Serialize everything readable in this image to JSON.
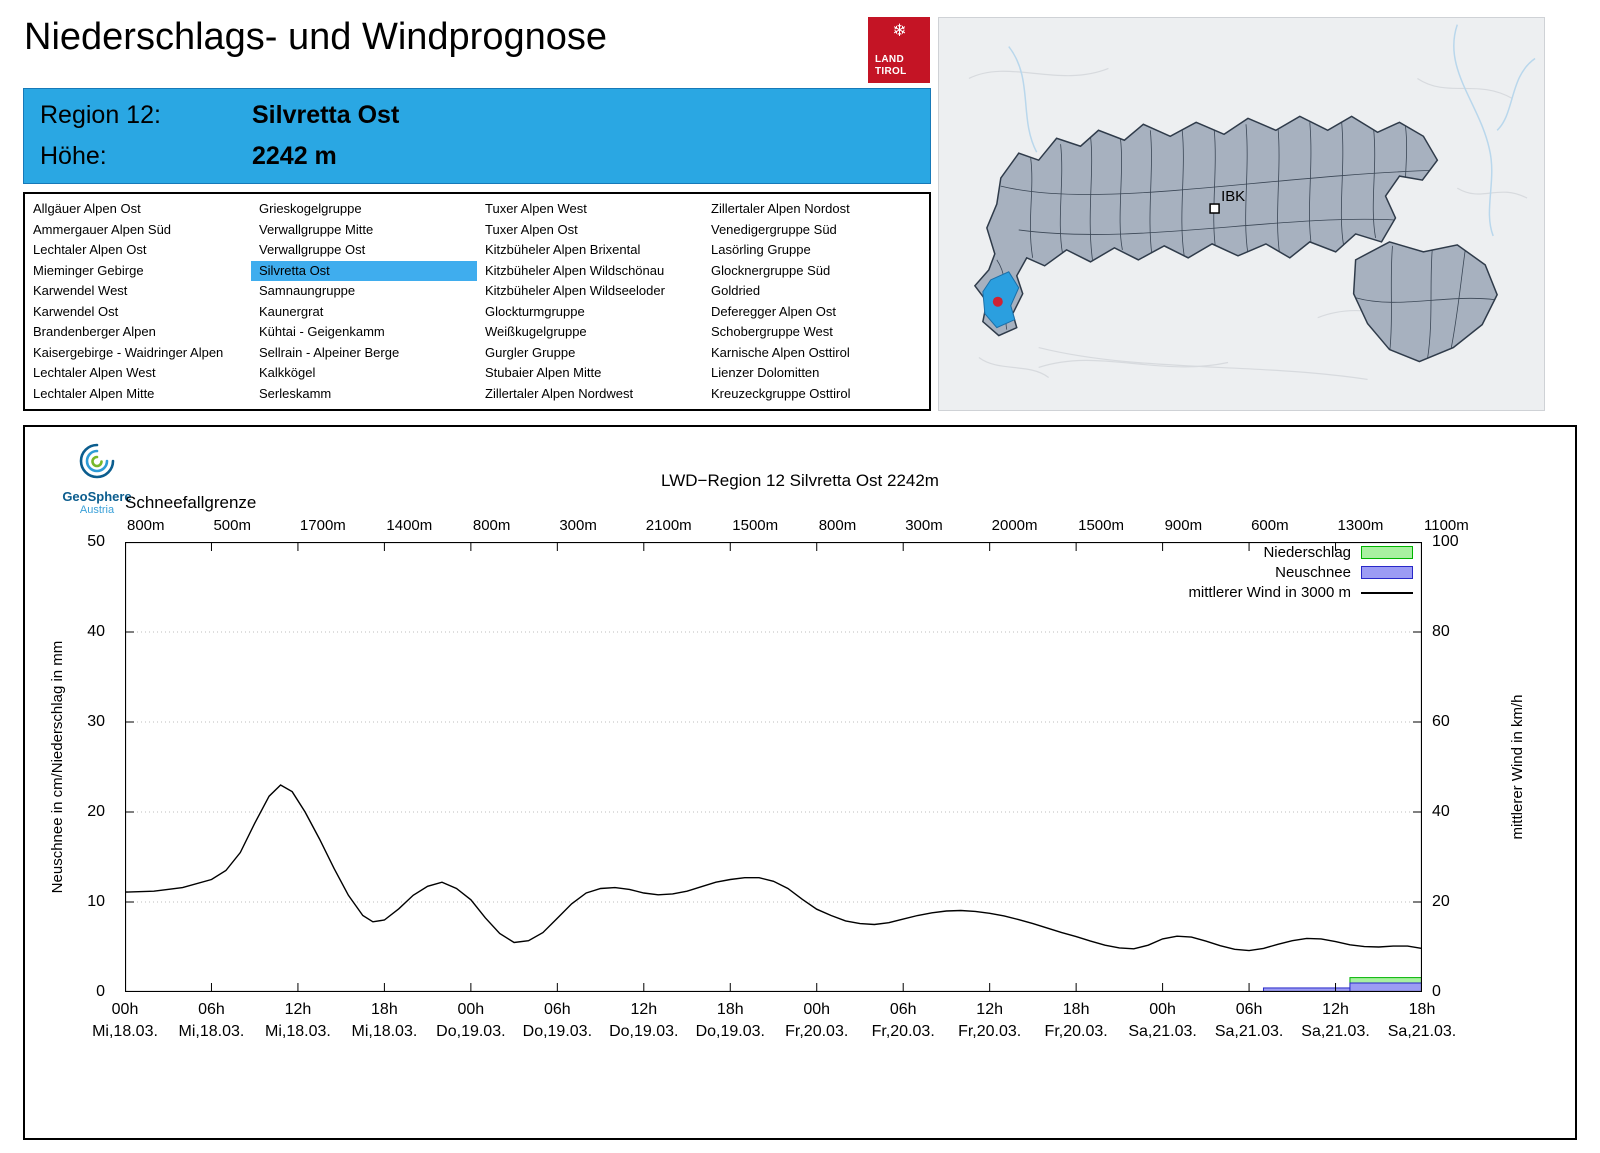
{
  "page": {
    "title": "Niederschlags- und Windprognose"
  },
  "logo": {
    "line1": "LAND",
    "line2": "TIROL",
    "color": "#c41425"
  },
  "info_box": {
    "region_label": "Region 12:",
    "region_value": "Silvretta Ost",
    "altitude_label": "Höhe:",
    "altitude_value": "2242 m",
    "bg_color": "#2aa7e3"
  },
  "map": {
    "marker_label": "IBK",
    "highlight_color": "#2b9fdf",
    "marker_dot_color": "#cf2233"
  },
  "region_list": {
    "selected": "Silvretta Ost",
    "highlight_color": "#3fadee",
    "columns": [
      [
        "Allgäuer Alpen Ost",
        "Ammergauer Alpen Süd",
        "Lechtaler Alpen Ost",
        "Mieminger Gebirge",
        "Karwendel West",
        "Karwendel Ost",
        "Brandenberger Alpen",
        "Kaisergebirge - Waidringer Alpen",
        "Lechtaler Alpen West",
        "Lechtaler Alpen Mitte"
      ],
      [
        "Grieskogelgruppe",
        "Verwallgruppe Mitte",
        "Verwallgruppe Ost",
        "Silvretta Ost",
        "Samnaungruppe",
        "Kaunergrat",
        "Kühtai - Geigenkamm",
        "Sellrain - Alpeiner Berge",
        "Kalkkögel",
        "Serleskamm"
      ],
      [
        "Tuxer Alpen West",
        "Tuxer Alpen Ost",
        "Kitzbüheler Alpen Brixental",
        "Kitzbüheler Alpen Wildschönau",
        "Kitzbüheler Alpen Wildseeloder",
        "Glockturmgruppe",
        "Weißkugelgruppe",
        "Gurgler Gruppe",
        "Stubaier Alpen Mitte",
        "Zillertaler Alpen Nordwest"
      ],
      [
        "Zillertaler Alpen Nordost",
        "Venedigergruppe Süd",
        "Lasörling Gruppe",
        "Glocknergruppe Süd",
        "Goldried",
        "Deferegger Alpen Ost",
        "Schobergruppe West",
        "Karnische Alpen Osttirol",
        "Lienzer Dolomitten",
        "Kreuzeckgruppe Osttirol"
      ]
    ]
  },
  "chart": {
    "title": "LWD−Region 12 Silvretta Ost 2242m",
    "provider_name": "GeoSphere",
    "provider_sub": "Austria",
    "snowline_label": "Schneefallgrenze",
    "legend": [
      {
        "label": "Niederschlag",
        "type": "bar",
        "fill": "#a9f1a1",
        "stroke": "#00b400"
      },
      {
        "label": "Neuschnee",
        "type": "bar",
        "fill": "#9c9cf4",
        "stroke": "#2828c8"
      },
      {
        "label": "mittlerer Wind in 3000 m",
        "type": "line",
        "stroke": "#000000"
      }
    ]
  },
  "chart_data": {
    "type": "line",
    "title": "LWD−Region 12 Silvretta Ost 2242m",
    "x_range_hours": [
      0,
      90
    ],
    "x_tick_interval_hours": 6,
    "grid": "horizontal-dotted",
    "legend_position": "top-right-inside",
    "x_ticks": [
      {
        "hour": "00h",
        "date": "Mi,18.03."
      },
      {
        "hour": "06h",
        "date": "Mi,18.03."
      },
      {
        "hour": "12h",
        "date": "Mi,18.03."
      },
      {
        "hour": "18h",
        "date": "Mi,18.03."
      },
      {
        "hour": "00h",
        "date": "Do,19.03."
      },
      {
        "hour": "06h",
        "date": "Do,19.03."
      },
      {
        "hour": "12h",
        "date": "Do,19.03."
      },
      {
        "hour": "18h",
        "date": "Do,19.03."
      },
      {
        "hour": "00h",
        "date": "Fr,20.03."
      },
      {
        "hour": "06h",
        "date": "Fr,20.03."
      },
      {
        "hour": "12h",
        "date": "Fr,20.03."
      },
      {
        "hour": "18h",
        "date": "Fr,20.03."
      },
      {
        "hour": "00h",
        "date": "Sa,21.03."
      },
      {
        "hour": "06h",
        "date": "Sa,21.03."
      },
      {
        "hour": "12h",
        "date": "Sa,21.03."
      },
      {
        "hour": "18h",
        "date": "Sa,21.03."
      }
    ],
    "snowline_values": [
      "800m",
      "500m",
      "1700m",
      "1400m",
      "800m",
      "300m",
      "2100m",
      "1500m",
      "800m",
      "300m",
      "2000m",
      "1500m",
      "900m",
      "600m",
      "1300m",
      "1100m"
    ],
    "y_left": {
      "label": "Neuschnee in cm/Niederschlag in mm",
      "min": 0,
      "max": 50,
      "ticks": [
        0,
        10,
        20,
        30,
        40,
        50
      ]
    },
    "y_right": {
      "label": "mittlerer Wind in km/h",
      "min": 0,
      "max": 100,
      "ticks": [
        0,
        20,
        40,
        60,
        80,
        100
      ]
    },
    "series": [
      {
        "name": "mittlerer Wind in 3000 m",
        "kind": "line",
        "axis": "right",
        "unit": "km/h",
        "color": "#000000",
        "points": [
          [
            0,
            22.2
          ],
          [
            2,
            22.4
          ],
          [
            4,
            23.2
          ],
          [
            6,
            25
          ],
          [
            7,
            27
          ],
          [
            8,
            31
          ],
          [
            9,
            37.5
          ],
          [
            10,
            43.5
          ],
          [
            10.8,
            46
          ],
          [
            11.6,
            44.5
          ],
          [
            12.5,
            40
          ],
          [
            13.5,
            34
          ],
          [
            14.5,
            27.5
          ],
          [
            15.5,
            21.5
          ],
          [
            16.5,
            17
          ],
          [
            17.2,
            15.6
          ],
          [
            18,
            16
          ],
          [
            19,
            18.5
          ],
          [
            20,
            21.5
          ],
          [
            21,
            23.5
          ],
          [
            22,
            24.4
          ],
          [
            23,
            23
          ],
          [
            24,
            20.5
          ],
          [
            25,
            16.5
          ],
          [
            26,
            13
          ],
          [
            27,
            11
          ],
          [
            28,
            11.4
          ],
          [
            29,
            13.2
          ],
          [
            30,
            16.4
          ],
          [
            31,
            19.6
          ],
          [
            32,
            22
          ],
          [
            33,
            23
          ],
          [
            34,
            23.2
          ],
          [
            35,
            22.8
          ],
          [
            36,
            22
          ],
          [
            37,
            21.6
          ],
          [
            38,
            21.8
          ],
          [
            39,
            22.4
          ],
          [
            40,
            23.4
          ],
          [
            41,
            24.4
          ],
          [
            42,
            25
          ],
          [
            43,
            25.4
          ],
          [
            44,
            25.4
          ],
          [
            45,
            24.6
          ],
          [
            46,
            23
          ],
          [
            47,
            20.6
          ],
          [
            48,
            18.4
          ],
          [
            49,
            17
          ],
          [
            50,
            15.8
          ],
          [
            51,
            15.2
          ],
          [
            52,
            15
          ],
          [
            53,
            15.4
          ],
          [
            54,
            16.2
          ],
          [
            55,
            17
          ],
          [
            56,
            17.6
          ],
          [
            57,
            18
          ],
          [
            58,
            18.1
          ],
          [
            59,
            17.9
          ],
          [
            60,
            17.5
          ],
          [
            61,
            16.9
          ],
          [
            62,
            16.1
          ],
          [
            63,
            15.2
          ],
          [
            64,
            14.2
          ],
          [
            65,
            13.2
          ],
          [
            66,
            12.3
          ],
          [
            67,
            11.3
          ],
          [
            68,
            10.4
          ],
          [
            69,
            9.8
          ],
          [
            70,
            9.6
          ],
          [
            71,
            10.4
          ],
          [
            72,
            11.8
          ],
          [
            73,
            12.4
          ],
          [
            74,
            12.2
          ],
          [
            75,
            11.3
          ],
          [
            76,
            10.3
          ],
          [
            77,
            9.5
          ],
          [
            78,
            9.2
          ],
          [
            79,
            9.7
          ],
          [
            80,
            10.6
          ],
          [
            81,
            11.4
          ],
          [
            82,
            11.9
          ],
          [
            83,
            11.8
          ],
          [
            84,
            11.2
          ],
          [
            85,
            10.5
          ],
          [
            86,
            10.1
          ],
          [
            87,
            10
          ],
          [
            88,
            10.2
          ],
          [
            89,
            10.2
          ],
          [
            90,
            9.7
          ]
        ]
      },
      {
        "name": "Niederschlag",
        "kind": "bar",
        "axis": "left",
        "unit": "mm",
        "fill": "#a9f1a1",
        "stroke": "#00b400",
        "segments": [
          {
            "from": 85,
            "to": 90,
            "value": 1.6
          }
        ]
      },
      {
        "name": "Neuschnee",
        "kind": "bar",
        "axis": "left",
        "unit": "cm",
        "fill": "#9c9cf4",
        "stroke": "#2828c8",
        "segments": [
          {
            "from": 79,
            "to": 85,
            "value": 0.45
          },
          {
            "from": 85,
            "to": 90,
            "value": 1.0
          }
        ]
      }
    ]
  }
}
